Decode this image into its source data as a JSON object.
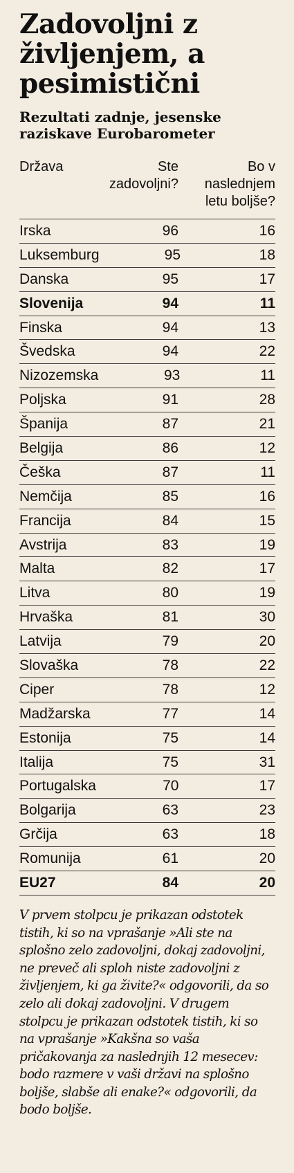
{
  "title": "Zadovoljni z življenjem, a pesimistični",
  "subtitle": "Rezultati zadnje, jesenske raziskave Eurobarometer",
  "headers": {
    "country": "Država",
    "satisfied": "Ste zadovoljni?",
    "better": "Bo v naslednjem letu boljše?"
  },
  "rows": [
    {
      "country": "Irska",
      "satisfied": "96",
      "better": "16",
      "bold": false
    },
    {
      "country": "Luksemburg",
      "satisfied": "95",
      "better": "18",
      "bold": false
    },
    {
      "country": "Danska",
      "satisfied": "95",
      "better": "17",
      "bold": false
    },
    {
      "country": "Slovenija",
      "satisfied": "94",
      "better": "11",
      "bold": true
    },
    {
      "country": "Finska",
      "satisfied": "94",
      "better": "13",
      "bold": false
    },
    {
      "country": "Švedska",
      "satisfied": "94",
      "better": "22",
      "bold": false
    },
    {
      "country": "Nizozemska",
      "satisfied": "93",
      "better": "11",
      "bold": false
    },
    {
      "country": "Poljska",
      "satisfied": "91",
      "better": "28",
      "bold": false
    },
    {
      "country": "Španija",
      "satisfied": "87",
      "better": "21",
      "bold": false
    },
    {
      "country": "Belgija",
      "satisfied": "86",
      "better": "12",
      "bold": false
    },
    {
      "country": "Češka",
      "satisfied": "87",
      "better": "11",
      "bold": false
    },
    {
      "country": "Nemčija",
      "satisfied": "85",
      "better": "16",
      "bold": false
    },
    {
      "country": "Francija",
      "satisfied": "84",
      "better": "15",
      "bold": false
    },
    {
      "country": "Avstrija",
      "satisfied": "83",
      "better": "19",
      "bold": false
    },
    {
      "country": "Malta",
      "satisfied": "82",
      "better": "17",
      "bold": false
    },
    {
      "country": "Litva",
      "satisfied": "80",
      "better": "19",
      "bold": false
    },
    {
      "country": "Hrvaška",
      "satisfied": "81",
      "better": "30",
      "bold": false
    },
    {
      "country": "Latvija",
      "satisfied": "79",
      "better": "20",
      "bold": false
    },
    {
      "country": "Slovaška",
      "satisfied": "78",
      "better": "22",
      "bold": false
    },
    {
      "country": "Ciper",
      "satisfied": "78",
      "better": "12",
      "bold": false
    },
    {
      "country": "Madžarska",
      "satisfied": "77",
      "better": "14",
      "bold": false
    },
    {
      "country": "Estonija",
      "satisfied": "75",
      "better": "14",
      "bold": false
    },
    {
      "country": "Italija",
      "satisfied": "75",
      "better": "31",
      "bold": false
    },
    {
      "country": "Portugalska",
      "satisfied": "70",
      "better": "17",
      "bold": false
    },
    {
      "country": "Bolgarija",
      "satisfied": "63",
      "better": "23",
      "bold": false
    },
    {
      "country": "Grčija",
      "satisfied": "63",
      "better": "18",
      "bold": false
    },
    {
      "country": "Romunija",
      "satisfied": "61",
      "better": "20",
      "bold": false
    },
    {
      "country": "EU27",
      "satisfied": "84",
      "better": "20",
      "bold": true
    }
  ],
  "note": "V prvem stolpcu je prikazan odstotek tistih, ki so na vprašanje »Ali ste na splošno zelo zadovoljni, dokaj zadovoljni, ne preveč ali sploh niste zadovoljni z življenjem, ki ga živite?« odgovorili, da so zelo ali dokaj zadovoljni.  V drugem stolpcu je prikazan odstotek tistih, ki so na vprašanje »Kakšna so vaša pričakovanja za naslednjih 12 mesecev: bodo razmere v vaši državi na splošno boljše, slabše ali enake?« odgovorili, da bodo boljše.",
  "colors": {
    "background": "#f3ece0",
    "text": "#111111",
    "rule": "#3a3a3a"
  }
}
